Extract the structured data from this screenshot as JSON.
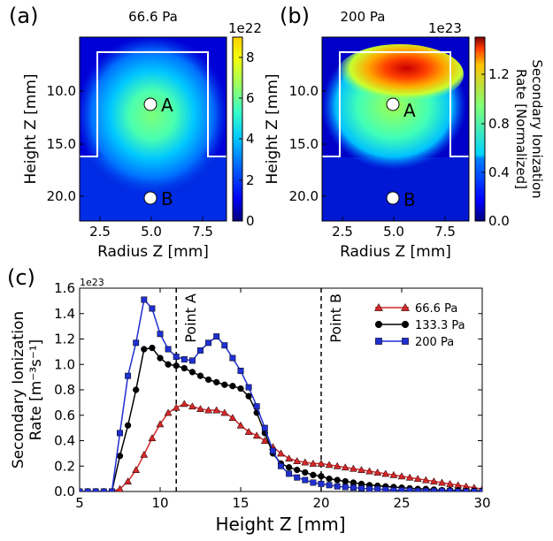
{
  "chart_data": [
    {
      "type": "heatmap",
      "panel_label": "(a)",
      "title": "66.6 Pa",
      "xlabel": "Radius Z [mm]",
      "ylabel": "Height Z [mm]",
      "xticks": [
        "2.5",
        "5.0",
        "7.5"
      ],
      "yticks": [
        "10.0",
        "15.0",
        "20.0"
      ],
      "xlim": [
        1.5,
        8.7
      ],
      "ylim": [
        22.5,
        5.5
      ],
      "colorbar": {
        "ticks": [
          "0",
          "2",
          "4",
          "6",
          "8"
        ],
        "max": 9,
        "exponent": "1e22"
      },
      "points": [
        {
          "label": "A",
          "x": 5.0,
          "y": 11.0
        },
        {
          "label": "B",
          "x": 5.0,
          "y": 20.0
        }
      ],
      "outline": [
        [
          1.5,
          16.0
        ],
        [
          2.6,
          16.0
        ],
        [
          2.6,
          6.5
        ],
        [
          7.5,
          6.5
        ],
        [
          7.5,
          16.0
        ],
        [
          8.7,
          16.0
        ]
      ]
    },
    {
      "type": "heatmap",
      "panel_label": "(b)",
      "title": "200 Pa",
      "xlabel": "Radius Z [mm]",
      "ylabel": "Height Z [mm]",
      "xticks": [
        "2.5",
        "5.0",
        "7.5"
      ],
      "yticks": [
        "10.0",
        "15.0",
        "20.0"
      ],
      "xlim": [
        1.5,
        8.7
      ],
      "ylim": [
        22.5,
        5.5
      ],
      "colorbar": {
        "ticks": [
          "0.0",
          "0.4",
          "0.8",
          "1.2"
        ],
        "max": 1.5,
        "exponent": "1e23",
        "label_line1": "Secondary Ionization",
        "label_line2": "Rate [Normalized]"
      },
      "points": [
        {
          "label": "A",
          "x": 5.0,
          "y": 11.0
        },
        {
          "label": "B",
          "x": 5.0,
          "y": 20.0
        }
      ],
      "outline": [
        [
          1.5,
          16.0
        ],
        [
          2.6,
          16.0
        ],
        [
          2.6,
          6.5
        ],
        [
          7.5,
          6.5
        ],
        [
          7.5,
          16.0
        ],
        [
          8.7,
          16.0
        ]
      ]
    },
    {
      "type": "line",
      "panel_label": "(c)",
      "xlabel": "Height Z [mm]",
      "ylabel_line1": "Secondary Ionization",
      "ylabel_line2": "Rate [m⁻³s⁻¹]",
      "exponent": "1e23",
      "xlim": [
        5,
        30
      ],
      "ylim": [
        0,
        1.6
      ],
      "xticks": [
        5,
        10,
        15,
        20,
        25,
        30
      ],
      "yticks": [
        "0.0",
        "0.2",
        "0.4",
        "0.6",
        "0.8",
        "1.0",
        "1.2",
        "1.4",
        "1.6"
      ],
      "vlines": [
        {
          "x": 11,
          "label": "Point A"
        },
        {
          "x": 20,
          "label": "Point B"
        }
      ],
      "series": [
        {
          "name": "66.6 Pa",
          "color": "#d62728",
          "marker": "triangle",
          "x": [
            5.0,
            5.5,
            6.0,
            6.5,
            7.0,
            7.5,
            8.0,
            8.5,
            9.0,
            9.5,
            10.0,
            10.5,
            11.0,
            11.5,
            12.0,
            12.5,
            13.0,
            13.5,
            14.0,
            14.5,
            15.0,
            15.5,
            16.0,
            16.5,
            17.0,
            17.5,
            18.0,
            18.5,
            19.0,
            19.5,
            20.0,
            20.5,
            21.0,
            21.5,
            22.0,
            22.5,
            23.0,
            23.5,
            24.0,
            24.5,
            25.0,
            25.5,
            26.0,
            26.5,
            27.0,
            27.5,
            28.0,
            28.5,
            29.0,
            29.5,
            30.0
          ],
          "y": [
            0.0,
            0.0,
            0.0,
            0.0,
            0.0,
            0.02,
            0.08,
            0.17,
            0.29,
            0.42,
            0.53,
            0.62,
            0.66,
            0.69,
            0.67,
            0.65,
            0.64,
            0.64,
            0.62,
            0.58,
            0.52,
            0.47,
            0.44,
            0.4,
            0.35,
            0.3,
            0.26,
            0.24,
            0.23,
            0.22,
            0.22,
            0.21,
            0.2,
            0.19,
            0.18,
            0.17,
            0.16,
            0.15,
            0.14,
            0.13,
            0.12,
            0.11,
            0.1,
            0.09,
            0.08,
            0.07,
            0.06,
            0.05,
            0.04,
            0.03,
            0.02
          ]
        },
        {
          "name": "133.3 Pa",
          "color": "#000000",
          "marker": "circle",
          "x": [
            5.0,
            5.5,
            6.0,
            6.5,
            7.0,
            7.5,
            8.0,
            8.5,
            9.0,
            9.5,
            10.0,
            10.5,
            11.0,
            11.5,
            12.0,
            12.5,
            13.0,
            13.5,
            14.0,
            14.5,
            15.0,
            15.5,
            16.0,
            16.5,
            17.0,
            17.5,
            18.0,
            18.5,
            19.0,
            19.5,
            20.0,
            20.5,
            21.0,
            21.5,
            22.0,
            22.5,
            23.0,
            23.5,
            24.0,
            24.5,
            25.0,
            25.5,
            26.0,
            26.5,
            27.0,
            27.5,
            28.0,
            28.5,
            29.0,
            29.5,
            30.0
          ],
          "y": [
            0.0,
            0.0,
            0.0,
            0.0,
            0.0,
            0.28,
            0.52,
            0.8,
            1.12,
            1.13,
            1.05,
            1.0,
            0.99,
            0.97,
            0.94,
            0.91,
            0.88,
            0.86,
            0.84,
            0.83,
            0.81,
            0.75,
            0.62,
            0.46,
            0.3,
            0.22,
            0.19,
            0.17,
            0.15,
            0.13,
            0.12,
            0.1,
            0.09,
            0.08,
            0.07,
            0.06,
            0.05,
            0.045,
            0.04,
            0.035,
            0.03,
            0.025,
            0.02,
            0.02,
            0.015,
            0.01,
            0.01,
            0.01,
            0.005,
            0.005,
            0.005
          ]
        },
        {
          "name": "200 Pa",
          "color": "#1f2fd0",
          "marker": "square",
          "x": [
            5.0,
            5.5,
            6.0,
            6.5,
            7.0,
            7.5,
            8.0,
            8.5,
            9.0,
            9.5,
            10.0,
            10.5,
            11.0,
            11.5,
            12.0,
            12.5,
            13.0,
            13.5,
            14.0,
            14.5,
            15.0,
            15.5,
            16.0,
            16.5,
            17.0,
            17.5,
            18.0,
            18.5,
            19.0,
            19.5,
            20.0,
            20.5,
            21.0,
            21.5,
            22.0,
            22.5,
            23.0,
            23.5,
            24.0,
            24.5,
            25.0,
            25.5,
            26.0,
            26.5,
            27.0,
            27.5,
            28.0,
            28.5,
            29.0,
            29.5,
            30.0
          ],
          "y": [
            0.0,
            0.0,
            0.0,
            0.0,
            0.0,
            0.46,
            0.91,
            1.17,
            1.51,
            1.44,
            1.24,
            1.12,
            1.06,
            1.04,
            1.03,
            1.11,
            1.17,
            1.22,
            1.15,
            1.05,
            0.95,
            0.82,
            0.67,
            0.5,
            0.32,
            0.2,
            0.14,
            0.11,
            0.09,
            0.07,
            0.06,
            0.05,
            0.04,
            0.035,
            0.03,
            0.025,
            0.02,
            0.02,
            0.015,
            0.01,
            0.01,
            0.01,
            0.005,
            0.005,
            0.005,
            0.005,
            0.005,
            0.0,
            0.0,
            0.0,
            0.0
          ]
        }
      ]
    }
  ]
}
